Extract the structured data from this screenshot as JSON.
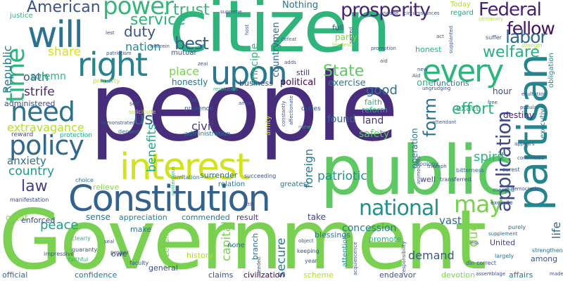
{
  "word_cloud": {
    "words": [
      {
        "text": "people",
        "color": "#472d7b"
      },
      {
        "text": "Government",
        "color": "#7ad151"
      },
      {
        "text": "citizen",
        "color": "#2fb47c"
      },
      {
        "text": "public",
        "color": "#5ec962"
      },
      {
        "text": "Constitution",
        "color": "#33638d"
      },
      {
        "text": "interest",
        "color": "#d2e21b"
      },
      {
        "text": "partisan",
        "color": "#25858e"
      },
      {
        "text": "will",
        "color": "#2c728e"
      },
      {
        "text": "right",
        "color": "#26828e"
      },
      {
        "text": "upon",
        "color": "#2a788e"
      },
      {
        "text": "every",
        "color": "#2fb47c"
      },
      {
        "text": "power",
        "color": "#35b779"
      },
      {
        "text": "policy",
        "color": "#31688e"
      },
      {
        "text": "need",
        "color": "#2c728e"
      },
      {
        "text": "national",
        "color": "#21918c"
      },
      {
        "text": "may",
        "color": "#7ad151"
      },
      {
        "text": "application",
        "color": "#3e4a89"
      },
      {
        "text": "prosperity",
        "color": "#482475"
      },
      {
        "text": "Federal",
        "color": "#481f70"
      },
      {
        "text": "fellow",
        "color": "#470e61"
      },
      {
        "text": "time",
        "color": "#2fb47c"
      },
      {
        "text": "American",
        "color": "#3b528b"
      },
      {
        "text": "service",
        "color": "#2fb47c"
      },
      {
        "text": "trust",
        "color": "#35b779"
      },
      {
        "text": "labor",
        "color": "#31688e"
      },
      {
        "text": "welfare",
        "color": "#29af7f"
      },
      {
        "text": "effort",
        "color": "#2fb47c"
      },
      {
        "text": "best",
        "color": "#355f8d"
      },
      {
        "text": "duty",
        "color": "#3b528b"
      },
      {
        "text": "nation",
        "color": "#238a8d"
      },
      {
        "text": "share",
        "color": "#d8e219"
      },
      {
        "text": "State",
        "color": "#5ec962"
      },
      {
        "text": "good",
        "color": "#2c728e"
      },
      {
        "text": "form",
        "color": "#2c728e"
      },
      {
        "text": "us",
        "color": "#31688e"
      },
      {
        "text": "spirit",
        "color": "#2fb47c"
      },
      {
        "text": "law",
        "color": "#433e85"
      },
      {
        "text": "country",
        "color": "#1f988b"
      },
      {
        "text": "peace",
        "color": "#1f9e89"
      },
      {
        "text": "benefits",
        "color": "#22a884"
      },
      {
        "text": "secure",
        "color": "#2a788e"
      },
      {
        "text": "demand",
        "color": "#38588c"
      },
      {
        "text": "oath",
        "color": "#3b528b"
      },
      {
        "text": "Republic",
        "color": "#2a788e"
      },
      {
        "text": "strife",
        "color": "#482878"
      },
      {
        "text": "solemn",
        "color": "#2fb47c"
      },
      {
        "text": "place",
        "color": "#7ad151"
      },
      {
        "text": "civil",
        "color": "#433e85"
      },
      {
        "text": "patriotic",
        "color": "#21918c"
      },
      {
        "text": "extravagance",
        "color": "#b5de2b"
      },
      {
        "text": "anxiety",
        "color": "#2c728e"
      },
      {
        "text": "capital",
        "color": "#7ad151"
      },
      {
        "text": "foreign",
        "color": "#2a788e"
      },
      {
        "text": "vast",
        "color": "#31688e"
      },
      {
        "text": "due",
        "color": "#89d548"
      },
      {
        "text": "life",
        "color": "#31688e"
      },
      {
        "text": "concession",
        "color": "#287c8e"
      },
      {
        "text": "found",
        "color": "#31688e"
      },
      {
        "text": "land",
        "color": "#46337e"
      },
      {
        "text": "safety",
        "color": "#5ec962"
      },
      {
        "text": "exercise",
        "color": "#2a788e"
      },
      {
        "text": "one",
        "color": "#2fb47c"
      },
      {
        "text": "exact",
        "color": "#22a884"
      },
      {
        "text": "hour",
        "color": "#3e4a89"
      },
      {
        "text": "destiny",
        "color": "#482173"
      },
      {
        "text": "executive",
        "color": "#2a788e"
      },
      {
        "text": "obligation",
        "color": "#25858e"
      },
      {
        "text": "country",
        "color": "#1f988b"
      },
      {
        "text": "principle",
        "color": "#2fb47c"
      },
      {
        "text": "countrymen",
        "color": "#31688e"
      },
      {
        "text": "political",
        "color": "#440154"
      },
      {
        "text": "business",
        "color": "#3b528b"
      },
      {
        "text": "honestly",
        "color": "#2c728e"
      },
      {
        "text": "administered",
        "color": "#3e4a89"
      },
      {
        "text": "mutual",
        "color": "#3b528b"
      },
      {
        "text": "Nothing",
        "color": "#2c728e"
      },
      {
        "text": "full",
        "color": "#3b528b"
      },
      {
        "text": "party",
        "color": "#7ad151"
      },
      {
        "text": "honest",
        "color": "#29af7f"
      },
      {
        "text": "Today",
        "color": "#b5de2b"
      },
      {
        "text": "regard",
        "color": "#22a884"
      },
      {
        "text": "still",
        "color": "#46337e"
      },
      {
        "text": "faith",
        "color": "#2fb47c"
      },
      {
        "text": "reform",
        "color": "#2fb47c"
      },
      {
        "text": "functions",
        "color": "#2a788e"
      },
      {
        "text": "operation",
        "color": "#2a788e"
      },
      {
        "text": "surrender",
        "color": "#2c728e"
      },
      {
        "text": "relieve",
        "color": "#89d548"
      },
      {
        "text": "relation",
        "color": "#2c728e"
      },
      {
        "text": "greatest",
        "color": "#2c728e"
      },
      {
        "text": "great",
        "color": "#89d548"
      },
      {
        "text": "enforced",
        "color": "#3e4a89"
      },
      {
        "text": "sense",
        "color": "#2c728e"
      },
      {
        "text": "appreciation",
        "color": "#2a788e"
      },
      {
        "text": "commended",
        "color": "#2c728e"
      },
      {
        "text": "make",
        "color": "#2c728e"
      },
      {
        "text": "owe",
        "color": "#3e4a89"
      },
      {
        "text": "result",
        "color": "#46337e"
      },
      {
        "text": "take",
        "color": "#414487"
      },
      {
        "text": "blessings",
        "color": "#2c728e"
      },
      {
        "text": "promote",
        "color": "#2fb47c"
      },
      {
        "text": "well",
        "color": "#414487"
      },
      {
        "text": "among",
        "color": "#3b528b"
      },
      {
        "text": "United",
        "color": "#414487"
      },
      {
        "text": "citizenship",
        "color": "#7ad151"
      },
      {
        "text": "branch",
        "color": "#2c728e"
      },
      {
        "text": "none",
        "color": "#31688e"
      },
      {
        "text": "history",
        "color": "#b5de2b"
      },
      {
        "text": "general",
        "color": "#3e4a89"
      },
      {
        "text": "official",
        "color": "#31688e"
      },
      {
        "text": "confidence",
        "color": "#2a788e"
      },
      {
        "text": "claims",
        "color": "#3b528b"
      },
      {
        "text": "civilization",
        "color": "#440154"
      },
      {
        "text": "scheme",
        "color": "#b5de2b"
      },
      {
        "text": "attention",
        "color": "#21918c"
      },
      {
        "text": "endeavor",
        "color": "#3b528b"
      },
      {
        "text": "devotion",
        "color": "#7ad151"
      },
      {
        "text": "affairs",
        "color": "#2a788e"
      },
      {
        "text": "justice",
        "color": "#2fb47c"
      },
      {
        "text": "manifestation",
        "color": "#414487"
      },
      {
        "text": "reward",
        "color": "#3b528b"
      },
      {
        "text": "protection",
        "color": "#22a884"
      },
      {
        "text": "administration",
        "color": "#2a788e"
      },
      {
        "text": "presence",
        "color": "#3b528b"
      },
      {
        "text": "self",
        "color": "#3b528b"
      },
      {
        "text": "solicitude",
        "color": "#b5de2b"
      },
      {
        "text": "depend",
        "color": "#2c728e"
      },
      {
        "text": "choice",
        "color": "#31688e"
      },
      {
        "text": "clearly",
        "color": "#2fb47c"
      },
      {
        "text": "impressive",
        "color": "#3b528b"
      },
      {
        "text": "guaranty",
        "color": "#3b528b"
      },
      {
        "text": "faithful",
        "color": "#2fb47c"
      },
      {
        "text": "faculty",
        "color": "#3b528b"
      },
      {
        "text": "proper",
        "color": "#3b528b"
      },
      {
        "text": "limitation",
        "color": "#2c728e"
      },
      {
        "text": "succeeding",
        "color": "#3b528b"
      },
      {
        "text": "amity",
        "color": "#d2e21b"
      },
      {
        "text": "duties",
        "color": "#3b528b"
      },
      {
        "text": "keeping",
        "color": "#3b528b"
      },
      {
        "text": "year",
        "color": "#3b528b"
      },
      {
        "text": "din",
        "color": "#3b528b"
      },
      {
        "text": "correct",
        "color": "#3b528b"
      },
      {
        "text": "largely",
        "color": "#2c728e"
      },
      {
        "text": "strengthen",
        "color": "#2c728e"
      },
      {
        "text": "purely",
        "color": "#31688e"
      },
      {
        "text": "supplement",
        "color": "#31688e"
      },
      {
        "text": "execute",
        "color": "#3b528b"
      },
      {
        "text": "merged",
        "color": "#31688e"
      },
      {
        "text": "transferred",
        "color": "#3b528b"
      },
      {
        "text": "bitterness",
        "color": "#31688e"
      },
      {
        "text": "surest",
        "color": "#3b528b"
      },
      {
        "text": "appears",
        "color": "#3b528b"
      },
      {
        "text": "apology",
        "color": "#31688e"
      },
      {
        "text": "attendant",
        "color": "#3b528b"
      },
      {
        "text": "mine",
        "color": "#2fb47c"
      },
      {
        "text": "anew",
        "color": "#3b528b"
      },
      {
        "text": "supreme",
        "color": "#3b528b"
      },
      {
        "text": "engage",
        "color": "#3b528b"
      },
      {
        "text": "circumstances",
        "color": "#3b528b"
      },
      {
        "text": "ceremony",
        "color": "#b5de2b"
      },
      {
        "text": "strength",
        "color": "#b5de2b"
      },
      {
        "text": "exultation",
        "color": "#3b528b"
      },
      {
        "text": "popular",
        "color": "#3b528b"
      },
      {
        "text": "ungrudging",
        "color": "#3b528b"
      },
      {
        "text": "promotion",
        "color": "#3b528b"
      },
      {
        "text": "defeat",
        "color": "#2c728e"
      },
      {
        "text": "fearless",
        "color": "#b5de2b"
      },
      {
        "text": "suffer",
        "color": "#3b528b"
      },
      {
        "text": "act",
        "color": "#3b528b"
      },
      {
        "text": "aid",
        "color": "#3b528b"
      },
      {
        "text": "adds",
        "color": "#3b528b"
      },
      {
        "text": "zeal",
        "color": "#3b528b"
      },
      {
        "text": "wherein",
        "color": "#3b528b"
      },
      {
        "text": "resolution",
        "color": "#2fb47c"
      },
      {
        "text": "let",
        "color": "#3b528b"
      },
      {
        "text": "lest",
        "color": "#3b528b"
      },
      {
        "text": "patriotism",
        "color": "#3b528b"
      },
      {
        "text": "property",
        "color": "#b5de2b"
      },
      {
        "text": "sacred",
        "color": "#3b528b"
      },
      {
        "text": "host",
        "color": "#3b528b"
      },
      {
        "text": "new",
        "color": "#3b528b"
      },
      {
        "text": "contentious",
        "color": "#2fb47c"
      },
      {
        "text": "less",
        "color": "#3b528b"
      },
      {
        "text": "made",
        "color": "#3b528b"
      },
      {
        "text": "assemblage",
        "color": "#3b528b"
      },
      {
        "text": "object",
        "color": "#3b528b"
      },
      {
        "text": "acquiescence",
        "color": "#3b528b"
      },
      {
        "text": "responsibility",
        "color": "#3b528b"
      },
      {
        "text": "needed",
        "color": "#3b528b"
      },
      {
        "text": "little",
        "color": "#3b528b"
      },
      {
        "text": "demonstrated",
        "color": "#3b528b"
      },
      {
        "text": "affectionate",
        "color": "#3b528b"
      },
      {
        "text": "constantly",
        "color": "#3b528b"
      },
      {
        "text": "supplanted",
        "color": "#3b528b"
      },
      {
        "text": "democratic",
        "color": "#3b528b"
      },
      {
        "text": "triumph",
        "color": "#3b528b"
      },
      {
        "text": "committed",
        "color": "#3b528b"
      },
      {
        "text": "seal",
        "color": "#3b528b"
      },
      {
        "text": "animosities",
        "color": "#3b528b"
      },
      {
        "text": "Aid",
        "color": "#3b528b"
      },
      {
        "text": "free",
        "color": "#3b528b"
      }
    ]
  }
}
